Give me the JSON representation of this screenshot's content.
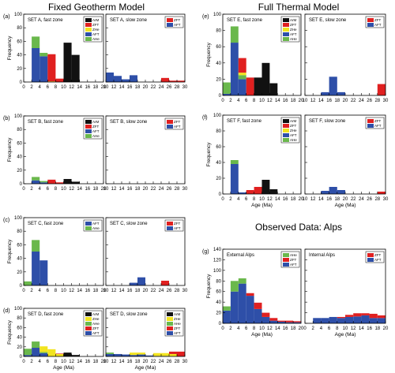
{
  "sections": {
    "fixed": "Fixed Geotherm Model",
    "full": "Full Thermal Model",
    "observed": "Observed Data: Alps"
  },
  "colors": {
    "ArM": "#111111",
    "ZFT": "#e02020",
    "ZHe": "#f2e420",
    "AFT": "#2e4fa8",
    "AHe": "#6ab84c"
  },
  "chart_data": [
    {
      "id": "a",
      "label": "(a)",
      "type": "bar",
      "title": "SET A, fast zone",
      "xlim": [
        0,
        20
      ],
      "ylim": [
        0,
        100
      ],
      "xticks": [
        0,
        2,
        4,
        6,
        8,
        10,
        12,
        14,
        16,
        18,
        20
      ],
      "yticks": [
        0,
        20,
        40,
        60,
        80,
        100
      ],
      "ylabel": "Frequency",
      "legend": [
        "ArM",
        "ZFT",
        "ZHe",
        "AFT",
        "AHe"
      ],
      "x": [
        1,
        3,
        5,
        7,
        9,
        11,
        13,
        15,
        17,
        19
      ],
      "series": [
        {
          "name": "AFT",
          "values": [
            0,
            50,
            38,
            0,
            0,
            0,
            0,
            0,
            0,
            0
          ]
        },
        {
          "name": "AHe",
          "values": [
            0,
            17,
            5,
            0,
            0,
            0,
            0,
            0,
            0,
            0
          ]
        },
        {
          "name": "ZHe",
          "values": [
            0,
            0,
            0,
            1,
            0,
            0,
            0,
            0,
            0,
            0
          ]
        },
        {
          "name": "ZFT",
          "values": [
            0,
            0,
            0,
            40,
            5,
            0,
            0,
            0,
            0,
            0
          ]
        },
        {
          "name": "ArM",
          "values": [
            0,
            0,
            0,
            0,
            0,
            58,
            40,
            0,
            0,
            0
          ]
        }
      ]
    },
    {
      "id": "a2",
      "type": "bar",
      "title": "SET A, slow zone",
      "xlim": [
        10,
        30
      ],
      "ylim": [
        0,
        100
      ],
      "xticks": [
        10,
        12,
        14,
        16,
        18,
        20,
        22,
        24,
        26,
        28,
        30
      ],
      "legend": [
        "ZFT",
        "AFT"
      ],
      "x": [
        11,
        13,
        15,
        17,
        19,
        21,
        23,
        25,
        27,
        29
      ],
      "series": [
        {
          "name": "AFT",
          "values": [
            14,
            9,
            4,
            10,
            0,
            0,
            0,
            0,
            0,
            0
          ]
        },
        {
          "name": "ZFT",
          "values": [
            0,
            0,
            0,
            0,
            0,
            0,
            0,
            6,
            2,
            2
          ]
        }
      ]
    },
    {
      "id": "b",
      "label": "(b)",
      "type": "bar",
      "title": "SET B, fast zone",
      "xlim": [
        0,
        20
      ],
      "ylim": [
        0,
        100
      ],
      "xticks": [
        0,
        2,
        4,
        6,
        8,
        10,
        12,
        14,
        16,
        18,
        20
      ],
      "yticks": [
        0,
        20,
        40,
        60,
        80,
        100
      ],
      "ylabel": "Frequency",
      "legend": [
        "ArM",
        "ZFT",
        "AFT",
        "AHe"
      ],
      "x": [
        1,
        3,
        5,
        7,
        9,
        11,
        13,
        15,
        17,
        19
      ],
      "series": [
        {
          "name": "AFT",
          "values": [
            0,
            5,
            2,
            0,
            0,
            0,
            0,
            0,
            0,
            0
          ]
        },
        {
          "name": "AHe",
          "values": [
            0,
            5,
            2,
            0,
            0,
            0,
            0,
            0,
            0,
            0
          ]
        },
        {
          "name": "ZFT",
          "values": [
            0,
            0,
            0,
            6,
            2,
            0,
            0,
            0,
            0,
            0
          ]
        },
        {
          "name": "ArM",
          "values": [
            0,
            0,
            0,
            0,
            0,
            7,
            3,
            0,
            0,
            0
          ]
        }
      ]
    },
    {
      "id": "b2",
      "type": "bar",
      "title": "SET B, slow zone",
      "xlim": [
        10,
        30
      ],
      "ylim": [
        0,
        100
      ],
      "xticks": [
        10,
        12,
        14,
        16,
        18,
        20,
        22,
        24,
        26,
        28,
        30
      ],
      "legend": [
        "ZFT",
        "AFT"
      ],
      "x": [
        11,
        13,
        15,
        17,
        19,
        21,
        23,
        25,
        27,
        29
      ],
      "series": []
    },
    {
      "id": "c",
      "label": "(c)",
      "type": "bar",
      "title": "SET C, fast zone",
      "xlim": [
        0,
        20
      ],
      "ylim": [
        0,
        100
      ],
      "xticks": [
        0,
        2,
        4,
        6,
        8,
        10,
        12,
        14,
        16,
        18,
        20
      ],
      "yticks": [
        0,
        20,
        40,
        60,
        80,
        100
      ],
      "ylabel": "Frequency",
      "legend": [
        "AFT",
        "AHe"
      ],
      "x": [
        1,
        3,
        5,
        7,
        9,
        11,
        13,
        15,
        17,
        19
      ],
      "series": [
        {
          "name": "AFT",
          "values": [
            0,
            50,
            37,
            0,
            0,
            0,
            0,
            0,
            0,
            0
          ]
        },
        {
          "name": "AHe",
          "values": [
            6,
            17,
            0,
            0,
            0,
            0,
            0,
            0,
            0,
            0
          ]
        }
      ]
    },
    {
      "id": "c2",
      "type": "bar",
      "title": "SET C, slow zone",
      "xlim": [
        10,
        30
      ],
      "ylim": [
        0,
        100
      ],
      "xticks": [
        10,
        12,
        14,
        16,
        18,
        20,
        22,
        24,
        26,
        28,
        30
      ],
      "legend": [
        "ZFT",
        "AFT"
      ],
      "x": [
        11,
        13,
        15,
        17,
        19,
        21,
        23,
        25,
        27,
        29
      ],
      "series": [
        {
          "name": "AFT",
          "values": [
            0,
            0,
            0,
            4,
            12,
            0,
            0,
            0,
            0,
            0
          ]
        },
        {
          "name": "ZFT",
          "values": [
            0,
            0,
            0,
            0,
            0,
            0,
            0,
            7,
            0,
            0
          ]
        }
      ]
    },
    {
      "id": "d",
      "label": "(d)",
      "type": "bar",
      "title": "SET D, fast zone",
      "xlim": [
        0,
        20
      ],
      "ylim": [
        0,
        100
      ],
      "xticks": [
        0,
        2,
        4,
        6,
        8,
        10,
        12,
        14,
        16,
        18,
        20
      ],
      "yticks": [
        0,
        20,
        40,
        60,
        80,
        100
      ],
      "ylabel": "Frequency",
      "xlabel": "Age (Ma)",
      "legend": [
        "ArM",
        "ZHe",
        "AHe",
        "ZFT",
        "AFT"
      ],
      "x": [
        1,
        3,
        5,
        7,
        9,
        11,
        13,
        15,
        17,
        19
      ],
      "series": [
        {
          "name": "AFT",
          "values": [
            3,
            18,
            7,
            0,
            0,
            0,
            0,
            0,
            0,
            0
          ]
        },
        {
          "name": "AHe",
          "values": [
            13,
            13,
            2,
            0,
            0,
            0,
            0,
            0,
            0,
            0
          ]
        },
        {
          "name": "ZHe",
          "values": [
            0,
            0,
            12,
            15,
            5,
            0,
            0,
            0,
            0,
            0
          ]
        },
        {
          "name": "ZFT",
          "values": [
            0,
            0,
            0,
            0,
            1,
            0,
            0,
            0,
            0,
            0
          ]
        },
        {
          "name": "ArM",
          "values": [
            0,
            0,
            0,
            0,
            0,
            8,
            3,
            0,
            0,
            0
          ]
        }
      ]
    },
    {
      "id": "d2",
      "type": "bar",
      "title": "SET D, slow zone",
      "xlim": [
        10,
        30
      ],
      "ylim": [
        0,
        100
      ],
      "xticks": [
        10,
        12,
        14,
        16,
        18,
        20,
        22,
        24,
        26,
        28,
        30
      ],
      "xlabel": "Age (Ma)",
      "legend": [
        "ArM",
        "ZHe",
        "AHe",
        "ZFT",
        "AFT"
      ],
      "x": [
        11,
        13,
        15,
        17,
        19,
        21,
        23,
        25,
        27,
        29
      ],
      "series": [
        {
          "name": "AFT",
          "values": [
            5,
            5,
            4,
            3,
            4,
            2,
            1,
            1,
            0,
            0
          ]
        },
        {
          "name": "AHe",
          "values": [
            3,
            0,
            0,
            0,
            0,
            0,
            0,
            0,
            0,
            0
          ]
        },
        {
          "name": "ZHe",
          "values": [
            0,
            0,
            0,
            5,
            4,
            0,
            6,
            6,
            5,
            0
          ]
        },
        {
          "name": "ZFT",
          "values": [
            0,
            0,
            0,
            0,
            0,
            0,
            0,
            0,
            5,
            10
          ]
        }
      ]
    },
    {
      "id": "e",
      "label": "(e)",
      "type": "bar",
      "title": "SET E, fast zone",
      "xlim": [
        0,
        20
      ],
      "ylim": [
        0,
        100
      ],
      "xticks": [
        0,
        2,
        4,
        6,
        8,
        10,
        12,
        14,
        16,
        18,
        20
      ],
      "yticks": [
        0,
        20,
        40,
        60,
        80,
        100
      ],
      "ylabel": "Frequency",
      "legend": [
        "ArM",
        "ZFT",
        "ZHe",
        "AFT",
        "AHe"
      ],
      "x": [
        1,
        3,
        5,
        7,
        9,
        11,
        13,
        15,
        17,
        19
      ],
      "series": [
        {
          "name": "AFT",
          "values": [
            2,
            65,
            20,
            0,
            0,
            0,
            0,
            0,
            0,
            0
          ]
        },
        {
          "name": "AHe",
          "values": [
            14,
            20,
            5,
            0,
            0,
            0,
            0,
            0,
            0,
            0
          ]
        },
        {
          "name": "ZHe",
          "values": [
            0,
            0,
            3,
            0,
            0,
            0,
            0,
            0,
            0,
            0
          ]
        },
        {
          "name": "ZFT",
          "values": [
            0,
            0,
            18,
            22,
            0,
            0,
            0,
            0,
            0,
            0
          ]
        },
        {
          "name": "ArM",
          "values": [
            0,
            0,
            0,
            0,
            22,
            40,
            15,
            0,
            0,
            0
          ]
        }
      ]
    },
    {
      "id": "e2",
      "type": "bar",
      "title": "SET E, slow zone",
      "xlim": [
        10,
        30
      ],
      "ylim": [
        0,
        100
      ],
      "xticks": [
        10,
        12,
        14,
        16,
        18,
        20,
        22,
        24,
        26,
        28,
        30
      ],
      "legend": [
        "ZFT",
        "AFT"
      ],
      "x": [
        11,
        13,
        15,
        17,
        19,
        21,
        23,
        25,
        27,
        29
      ],
      "series": [
        {
          "name": "AFT",
          "values": [
            0,
            0,
            4,
            23,
            4,
            0,
            0,
            0,
            0,
            0
          ]
        },
        {
          "name": "ZFT",
          "values": [
            0,
            0,
            0,
            0,
            0,
            0,
            0,
            0,
            0,
            14
          ]
        }
      ]
    },
    {
      "id": "f",
      "label": "(f)",
      "type": "bar",
      "title": "SET F, fast zone",
      "xlim": [
        0,
        20
      ],
      "ylim": [
        0,
        100
      ],
      "xticks": [
        0,
        2,
        4,
        6,
        8,
        10,
        12,
        14,
        16,
        18,
        20
      ],
      "yticks": [
        0,
        20,
        40,
        60,
        80,
        100
      ],
      "ylabel": "Frequency",
      "xlabel": "Age (Ma)",
      "legend": [
        "ArM",
        "ZFT",
        "ZHe",
        "AFT",
        "AHe"
      ],
      "x": [
        1,
        3,
        5,
        7,
        9,
        11,
        13,
        15,
        17,
        19
      ],
      "series": [
        {
          "name": "AFT",
          "values": [
            0,
            38,
            2,
            0,
            0,
            0,
            0,
            0,
            0,
            0
          ]
        },
        {
          "name": "AHe",
          "values": [
            0,
            5,
            0,
            0,
            0,
            0,
            0,
            0,
            0,
            0
          ]
        },
        {
          "name": "ZFT",
          "values": [
            0,
            0,
            0,
            5,
            9,
            0,
            0,
            0,
            0,
            0
          ]
        },
        {
          "name": "ArM",
          "values": [
            0,
            0,
            0,
            0,
            0,
            18,
            6,
            0,
            0,
            0
          ]
        }
      ]
    },
    {
      "id": "f2",
      "type": "bar",
      "title": "SET F, slow zone",
      "xlim": [
        10,
        30
      ],
      "ylim": [
        0,
        100
      ],
      "xticks": [
        10,
        12,
        14,
        16,
        18,
        20,
        22,
        24,
        26,
        28,
        30
      ],
      "xlabel": "Age (Ma)",
      "legend": [
        "ZFT",
        "AFT"
      ],
      "x": [
        11,
        13,
        15,
        17,
        19,
        21,
        23,
        25,
        27,
        29
      ],
      "series": [
        {
          "name": "AFT",
          "values": [
            0,
            0,
            4,
            9,
            5,
            0,
            0,
            0,
            0,
            0
          ]
        },
        {
          "name": "ZFT",
          "values": [
            0,
            0,
            0,
            0,
            0,
            0,
            0,
            0,
            0,
            3
          ]
        }
      ]
    },
    {
      "id": "g",
      "label": "(g)",
      "type": "bar",
      "title": "External Alps",
      "xlim": [
        0,
        20
      ],
      "ylim": [
        0,
        140
      ],
      "xticks": [
        0,
        2,
        4,
        6,
        8,
        10,
        12,
        14,
        16,
        18,
        20
      ],
      "yticks": [
        0,
        20,
        40,
        60,
        80,
        100,
        120,
        140
      ],
      "ylabel": "Frequency",
      "xlabel": "Age (Ma)",
      "legend": [
        "AHe",
        "ZFT",
        "AFT"
      ],
      "x": [
        1,
        3,
        5,
        7,
        9,
        11,
        13,
        15,
        17,
        19
      ],
      "series": [
        {
          "name": "AFT",
          "values": [
            24,
            60,
            75,
            52,
            27,
            12,
            5,
            3,
            2,
            2
          ]
        },
        {
          "name": "AHe",
          "values": [
            8,
            20,
            10,
            0,
            0,
            0,
            0,
            0,
            0,
            0
          ]
        },
        {
          "name": "ZFT",
          "values": [
            0,
            0,
            0,
            5,
            12,
            8,
            5,
            2,
            3,
            2
          ]
        }
      ]
    },
    {
      "id": "g2",
      "type": "bar",
      "title": "Internal Alps",
      "xlim": [
        0,
        20
      ],
      "ylim": [
        0,
        140
      ],
      "xticks": [
        0,
        2,
        4,
        6,
        8,
        10,
        12,
        14,
        16,
        18,
        20
      ],
      "xlabel": "Age (Ma)",
      "legend": [
        "ZFT",
        "AFT"
      ],
      "x": [
        1,
        3,
        5,
        7,
        9,
        11,
        13,
        15,
        17,
        19
      ],
      "series": [
        {
          "name": "AFT",
          "values": [
            0,
            10,
            10,
            12,
            10,
            12,
            13,
            15,
            10,
            10
          ]
        },
        {
          "name": "ZFT",
          "values": [
            0,
            0,
            0,
            0,
            2,
            4,
            6,
            4,
            8,
            5
          ]
        }
      ]
    }
  ]
}
